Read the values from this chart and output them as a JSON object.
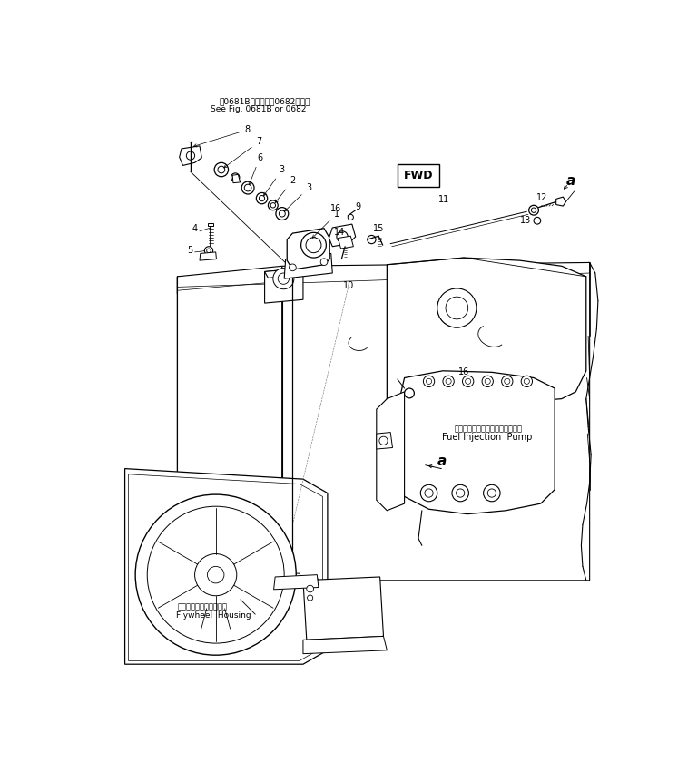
{
  "title_jp": "第0681B図または第0682図参照",
  "title_en": "See Fig. 0681B or 0682",
  "label_flywheel_jp": "フライホイルハウジング",
  "label_flywheel_en": "Flywheel  Housing",
  "label_fip_jp": "フェエルインジェクションポンプ",
  "label_fip_en": "Fuel Injection  Pump",
  "label_fwd": "FWD",
  "bg_color": "#ffffff",
  "lc": "#000000",
  "lw": 0.7
}
